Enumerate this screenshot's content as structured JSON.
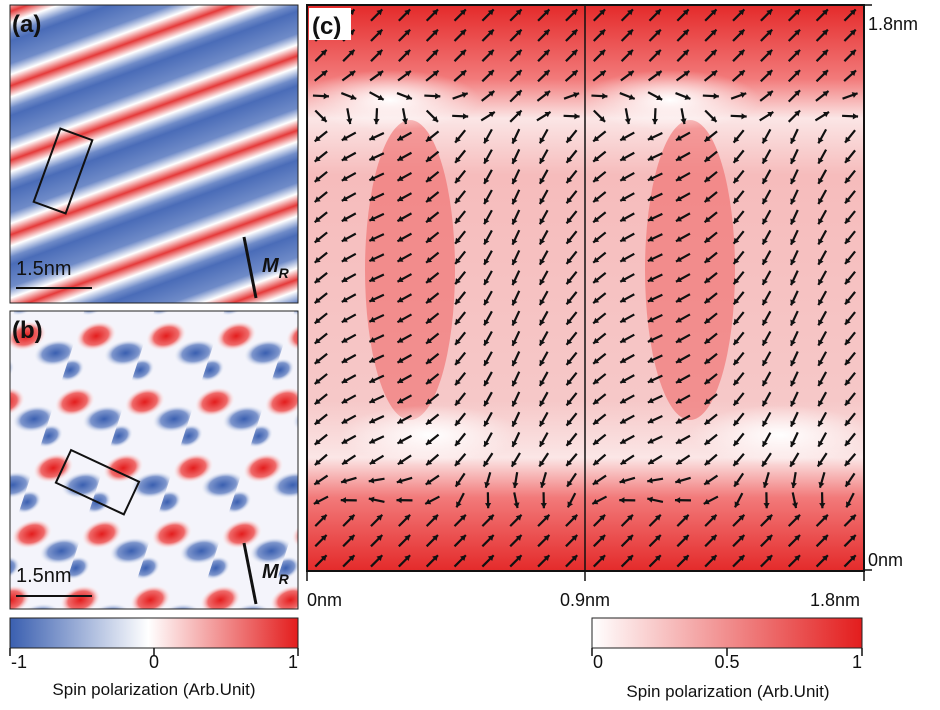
{
  "panels": {
    "a": {
      "label": "(a)",
      "scale": "1.5nm",
      "field": {
        "symbol": "M",
        "subscript": "R"
      }
    },
    "b": {
      "label": "(b)",
      "scale": "1.5nm",
      "field": {
        "symbol": "M",
        "subscript": "R"
      }
    },
    "c": {
      "label": "(c)",
      "x_axis": [
        "0nm",
        "0.9nm",
        "1.8nm"
      ],
      "y_axis": [
        "1.8nm",
        "0nm"
      ]
    }
  },
  "colorbars": [
    {
      "ticks": [
        -1,
        0,
        1
      ],
      "label": "Spin polarization (Arb.Unit)"
    },
    {
      "ticks": [
        0,
        0.5,
        1
      ],
      "label": "Spin polarization (Arb.Unit)"
    }
  ]
}
